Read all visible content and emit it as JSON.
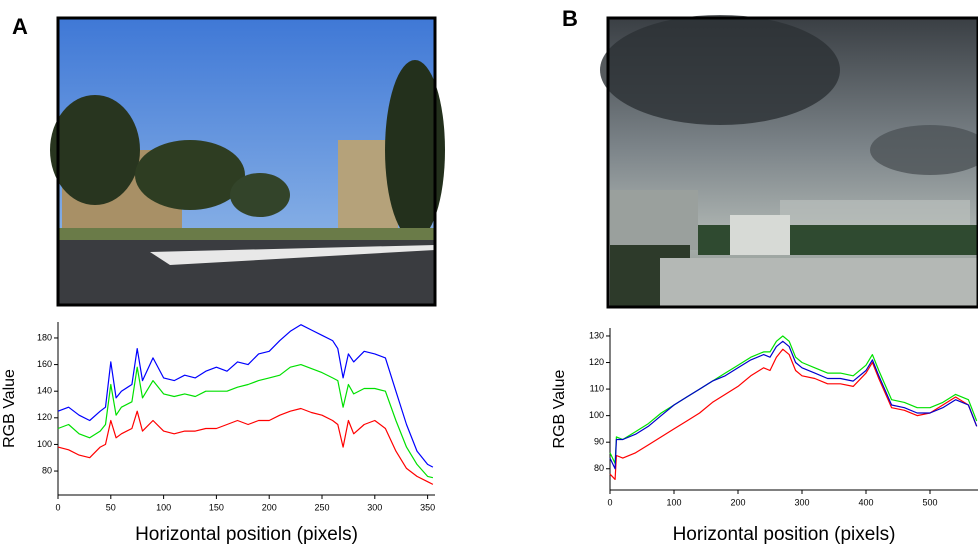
{
  "chart_data": [
    {
      "type": "line",
      "label": "A",
      "ylabel": "RGB Value",
      "xlabel": "Horizontal position (pixels)",
      "x": [
        0,
        10,
        20,
        30,
        40,
        45,
        50,
        55,
        60,
        70,
        75,
        80,
        90,
        100,
        110,
        120,
        130,
        140,
        150,
        160,
        170,
        180,
        190,
        200,
        210,
        220,
        230,
        240,
        250,
        260,
        265,
        270,
        275,
        280,
        290,
        300,
        310,
        320,
        330,
        340,
        350,
        355
      ],
      "series": [
        {
          "color": "#0000ff",
          "values": [
            125,
            128,
            122,
            118,
            125,
            128,
            162,
            135,
            140,
            145,
            172,
            148,
            165,
            150,
            148,
            152,
            150,
            155,
            158,
            155,
            162,
            160,
            168,
            170,
            178,
            185,
            190,
            186,
            182,
            178,
            172,
            150,
            168,
            162,
            170,
            168,
            165,
            140,
            115,
            95,
            85,
            83
          ]
        },
        {
          "color": "#00e000",
          "values": [
            112,
            115,
            108,
            105,
            110,
            115,
            145,
            122,
            128,
            132,
            158,
            135,
            148,
            138,
            136,
            138,
            136,
            140,
            140,
            140,
            143,
            145,
            148,
            150,
            152,
            158,
            160,
            157,
            154,
            150,
            148,
            128,
            145,
            138,
            142,
            142,
            140,
            118,
            98,
            85,
            76,
            75
          ]
        },
        {
          "color": "#ff0000",
          "values": [
            98,
            96,
            92,
            90,
            98,
            100,
            118,
            105,
            108,
            112,
            125,
            110,
            118,
            110,
            108,
            110,
            110,
            112,
            112,
            115,
            118,
            115,
            118,
            118,
            122,
            125,
            127,
            124,
            122,
            118,
            115,
            98,
            118,
            108,
            115,
            118,
            112,
            95,
            82,
            76,
            72,
            70
          ]
        }
      ],
      "xlim": [
        0,
        357
      ],
      "ylim": [
        62,
        192
      ],
      "xticks": [
        0,
        50,
        100,
        150,
        200,
        250,
        300,
        350
      ],
      "yticks": [
        80,
        100,
        120,
        140,
        160,
        180
      ]
    },
    {
      "type": "line",
      "label": "B",
      "ylabel": "RGB Value",
      "xlabel": "Horizontal position (pixels)",
      "x": [
        0,
        8,
        10,
        20,
        40,
        60,
        80,
        100,
        120,
        140,
        160,
        180,
        200,
        220,
        240,
        250,
        260,
        270,
        280,
        290,
        300,
        320,
        340,
        360,
        380,
        400,
        410,
        420,
        440,
        460,
        480,
        500,
        520,
        540,
        560,
        573
      ],
      "series": [
        {
          "color": "#00e000",
          "values": [
            86,
            82,
            92,
            91,
            94,
            97,
            101,
            104,
            107,
            110,
            113,
            116,
            119,
            122,
            124,
            124,
            128,
            130,
            128,
            122,
            120,
            118,
            116,
            116,
            115,
            119,
            123,
            117,
            106,
            105,
            103,
            103,
            105,
            108,
            106,
            98
          ]
        },
        {
          "color": "#ff0000",
          "values": [
            78,
            76,
            85,
            84,
            86,
            89,
            92,
            95,
            98,
            101,
            105,
            108,
            111,
            115,
            118,
            117,
            122,
            125,
            123,
            117,
            115,
            114,
            112,
            112,
            111,
            116,
            120,
            114,
            103,
            102,
            100,
            101,
            104,
            107,
            104,
            96
          ]
        },
        {
          "color": "#0000cc",
          "values": [
            84,
            80,
            91,
            91,
            93,
            96,
            100,
            104,
            107,
            110,
            113,
            115,
            118,
            121,
            123,
            122,
            126,
            128,
            126,
            120,
            118,
            116,
            114,
            114,
            113,
            117,
            121,
            115,
            104,
            103,
            101,
            101,
            103,
            106,
            104,
            96
          ]
        }
      ],
      "xlim": [
        0,
        575
      ],
      "ylim": [
        72,
        133
      ],
      "xticks": [
        0,
        100,
        200,
        300,
        400,
        500
      ],
      "yticks": [
        80,
        90,
        100,
        110,
        120,
        130
      ]
    }
  ]
}
